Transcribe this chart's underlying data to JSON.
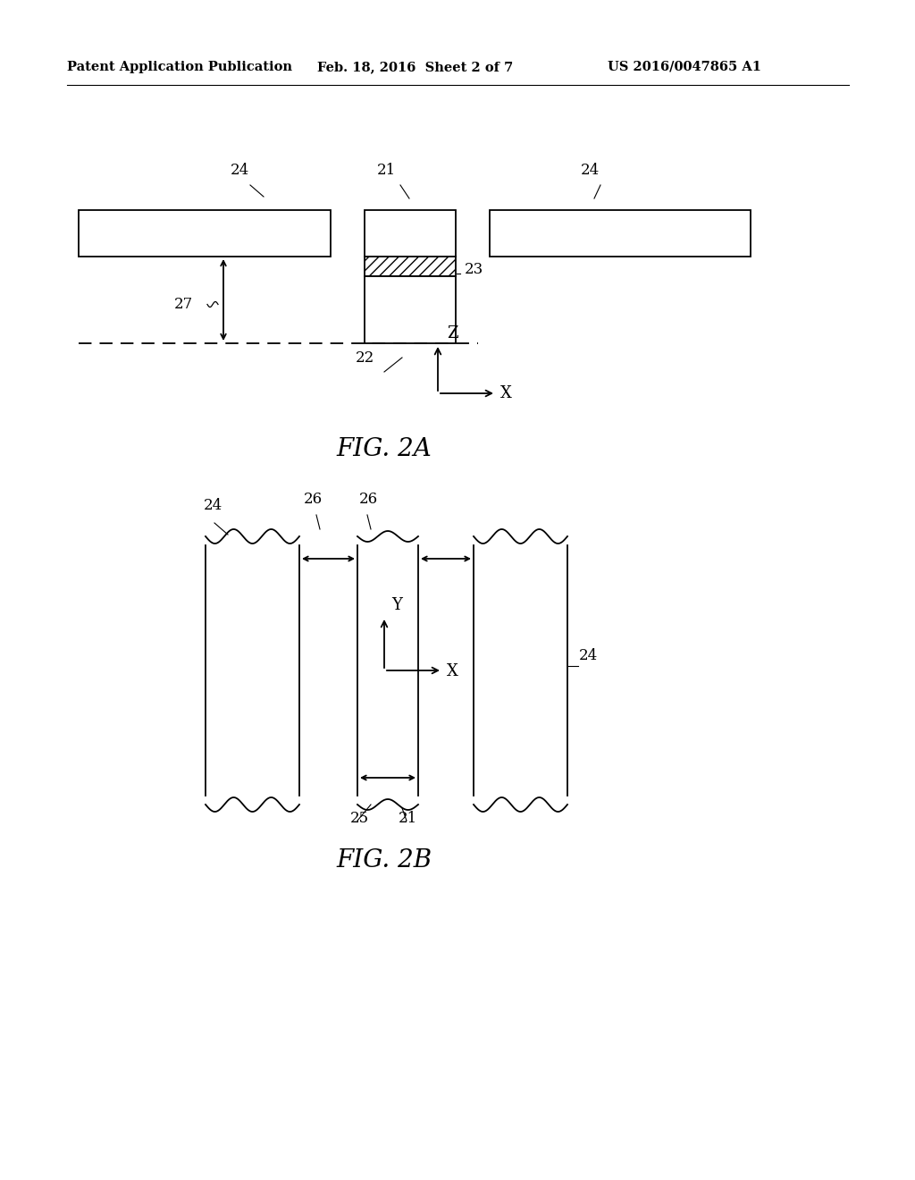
{
  "bg_color": "#ffffff",
  "header_left": "Patent Application Publication",
  "header_mid": "Feb. 18, 2016  Sheet 2 of 7",
  "header_right": "US 2016/0047865 A1",
  "fig2a_caption": "FIG. 2A",
  "fig2b_caption": "FIG. 2B"
}
